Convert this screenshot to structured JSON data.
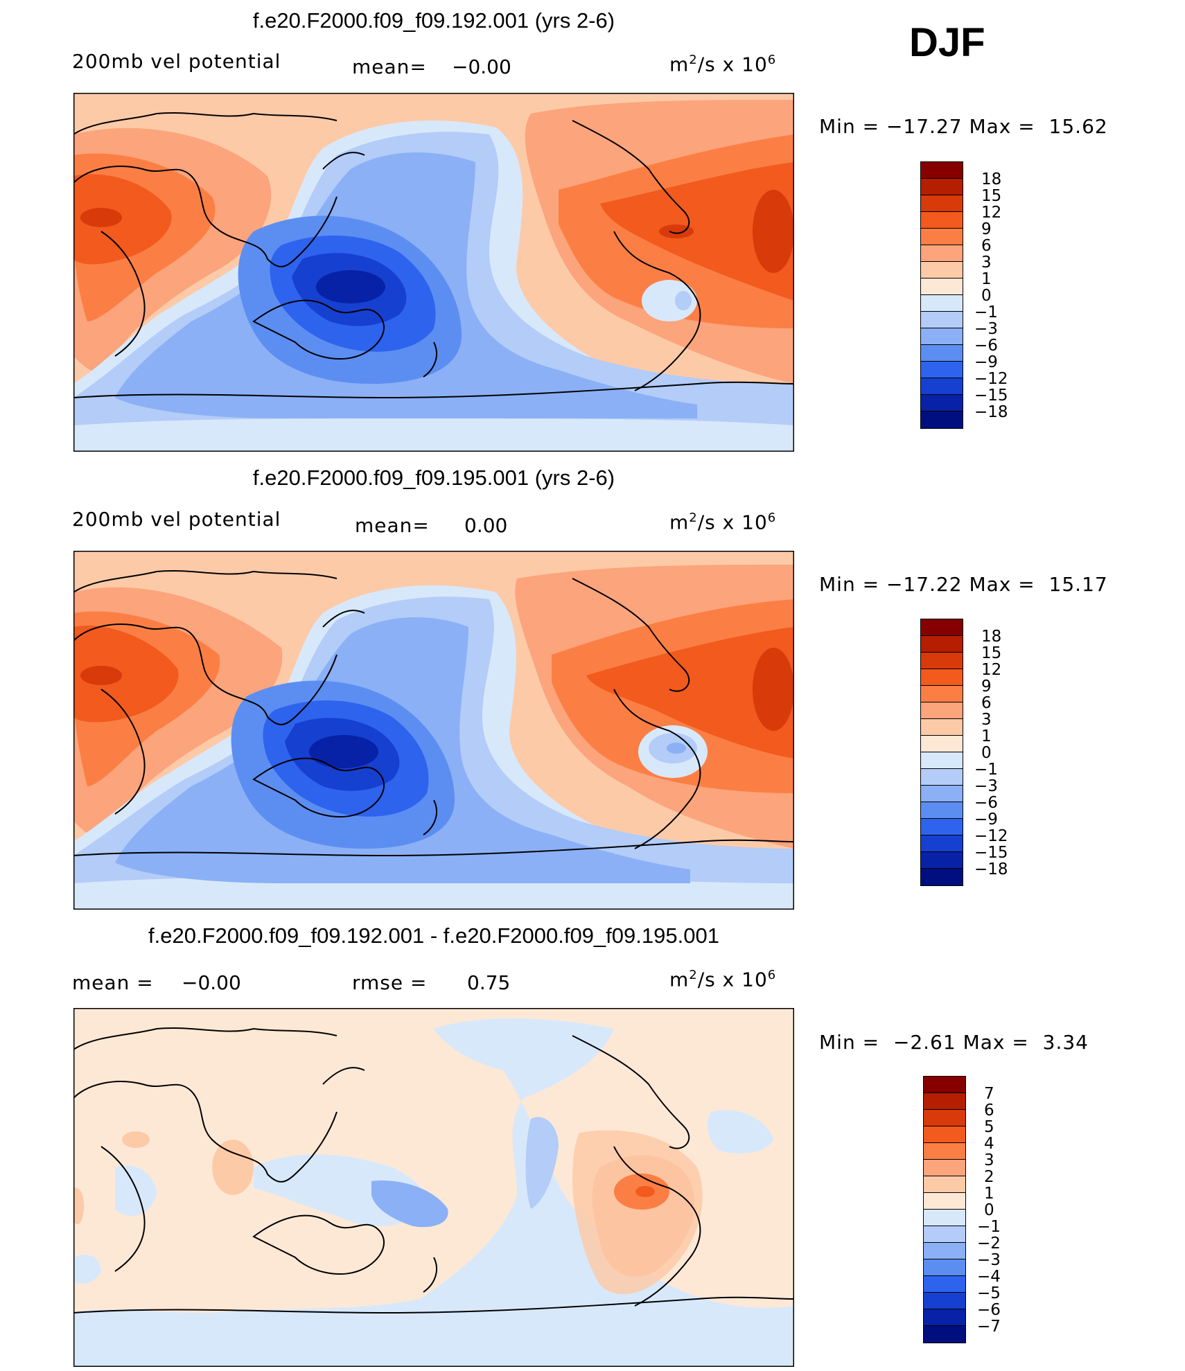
{
  "season": "DJF",
  "panels": [
    {
      "title": "f.e20.F2000.f09_f09.192.001 (yrs 2-6)",
      "variable": "200mb vel potential",
      "mean_label": "mean=",
      "mean_value": "−0.00",
      "units_base": "m",
      "units_exp": "2",
      "units_mid": "/s x 10",
      "units_exp2": "6",
      "min_label": "Min =",
      "min_value": "−17.27",
      "max_label": "Max =",
      "max_value": "15.62"
    },
    {
      "title": "f.e20.F2000.f09_f09.195.001 (yrs 2-6)",
      "variable": "200mb vel potential",
      "mean_label": "mean=",
      "mean_value": "0.00",
      "units_base": "m",
      "units_exp": "2",
      "units_mid": "/s x 10",
      "units_exp2": "6",
      "min_label": "Min =",
      "min_value": "−17.22",
      "max_label": "Max =",
      "max_value": "15.17"
    },
    {
      "title": "f.e20.F2000.f09_f09.192.001 - f.e20.F2000.f09_f09.195.001",
      "mean_label": "mean =",
      "mean_value": "−0.00",
      "rmse_label": "rmse =",
      "rmse_value": "0.75",
      "units_base": "m",
      "units_exp": "2",
      "units_mid": "/s x 10",
      "units_exp2": "6",
      "min_label": "Min =",
      "min_value": "−2.61",
      "max_label": "Max =",
      "max_value": "3.34"
    }
  ],
  "colorbars": {
    "full": {
      "labels": [
        "18",
        "15",
        "12",
        "9",
        "6",
        "3",
        "1",
        "0",
        "−1",
        "−3",
        "−6",
        "−9",
        "−12",
        "−15",
        "−18"
      ],
      "colors": [
        "#870000",
        "#b51e00",
        "#d83a0a",
        "#f25a1e",
        "#fb7f45",
        "#fca47c",
        "#fdcaa8",
        "#fde8d6",
        "#d8e8fb",
        "#b3ccf8",
        "#8bb0f5",
        "#5c8ef2",
        "#2e63ee",
        "#1640d0",
        "#0722a6",
        "#000f80"
      ]
    },
    "diff": {
      "labels": [
        "7",
        "6",
        "5",
        "4",
        "3",
        "2",
        "1",
        "0",
        "−1",
        "−2",
        "−3",
        "−4",
        "−5",
        "−6",
        "−7"
      ],
      "colors": [
        "#870000",
        "#b51e00",
        "#d83a0a",
        "#f25a1e",
        "#fb7f45",
        "#fca47c",
        "#fdcaa8",
        "#fde8d6",
        "#d8e8fb",
        "#b3ccf8",
        "#8bb0f5",
        "#5c8ef2",
        "#2e63ee",
        "#1640d0",
        "#0722a6",
        "#000f80"
      ]
    }
  }
}
